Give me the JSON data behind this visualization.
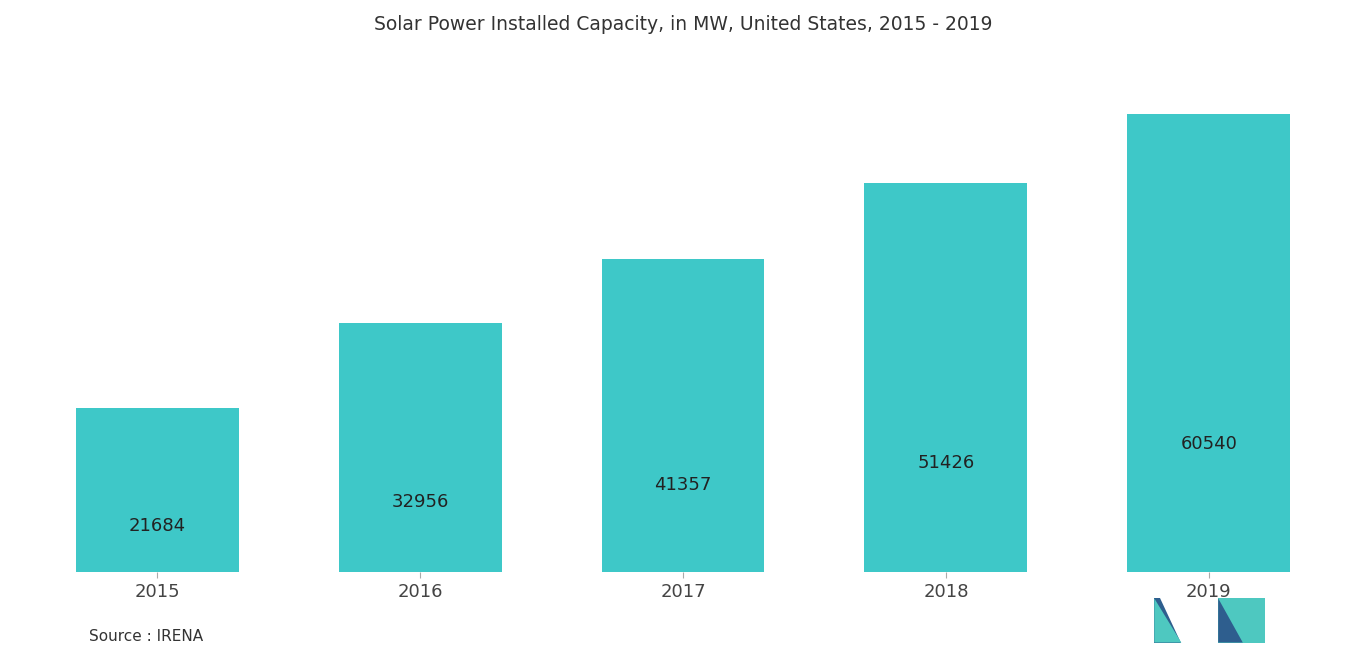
{
  "title": "Solar Power Installed Capacity, in MW, United States, 2015 - 2019",
  "categories": [
    "2015",
    "2016",
    "2017",
    "2018",
    "2019"
  ],
  "values": [
    21684,
    32956,
    41357,
    51426,
    60540
  ],
  "bar_color": "#3EC8C8",
  "bar_width": 0.62,
  "background_color": "#ffffff",
  "title_fontsize": 13.5,
  "label_fontsize": 13,
  "tick_fontsize": 13,
  "source_text": "Source : IRENA",
  "ylim": [
    0,
    68000
  ],
  "value_label_color": "#222222",
  "logo_dark_color": "#2E5E8E",
  "logo_teal_color": "#4EC8C0"
}
